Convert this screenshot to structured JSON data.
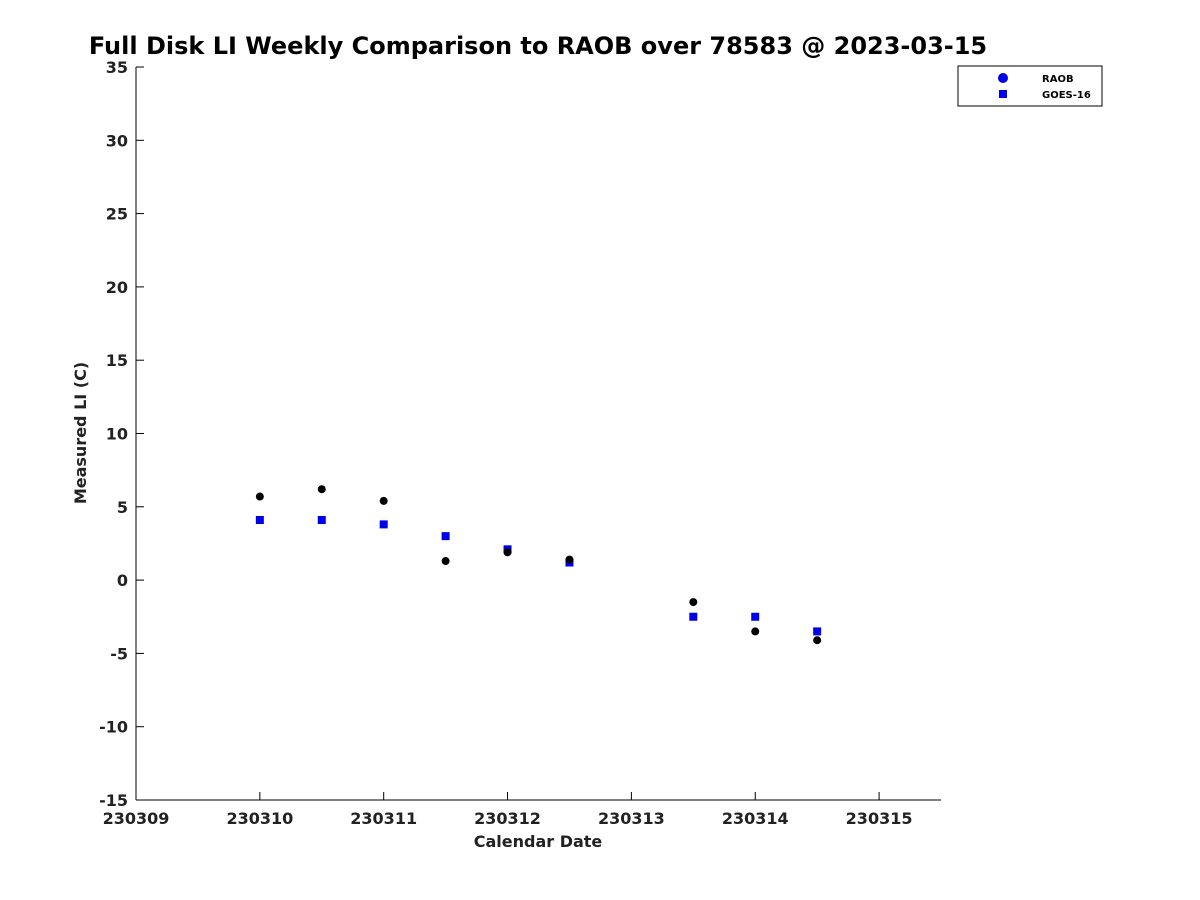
{
  "chart_data": {
    "type": "scatter",
    "title": "Full Disk LI Weekly Comparison to RAOB over 78583 @ 2023-03-15",
    "xlabel": "Calendar Date",
    "ylabel": "Measured LI (C)",
    "xlim": [
      230309,
      230315.5
    ],
    "ylim": [
      -15,
      35
    ],
    "xticks": [
      230309,
      230310,
      230311,
      230312,
      230313,
      230314,
      230315
    ],
    "xtick_labels": [
      "230309",
      "230310",
      "230311",
      "230312",
      "230313",
      "230314",
      "230315"
    ],
    "yticks": [
      35,
      30,
      25,
      20,
      15,
      10,
      5,
      0,
      -5,
      -10,
      -15
    ],
    "ytick_labels": [
      "35",
      "30",
      "25",
      "20",
      "15",
      "10",
      "5",
      "0",
      "-5",
      "-10",
      "-15"
    ],
    "grid": false,
    "legend_position": "top-right, outside plot",
    "series": [
      {
        "name": "RAOB",
        "marker": "circle",
        "color": "#000000",
        "legend_color": "#0000ee",
        "x": [
          230310,
          230310.5,
          230311,
          230311.5,
          230312,
          230312.5,
          230313.5,
          230314,
          230314.5
        ],
        "y": [
          5.7,
          6.2,
          5.4,
          1.3,
          1.9,
          1.4,
          -1.5,
          -3.5,
          -4.1
        ]
      },
      {
        "name": "GOES-16",
        "marker": "square",
        "color": "#0000ee",
        "x": [
          230310,
          230310.5,
          230311,
          230311.5,
          230312,
          230312.5,
          230313.5,
          230314,
          230314.5
        ],
        "y": [
          4.1,
          4.1,
          3.8,
          3.0,
          2.1,
          1.2,
          -2.5,
          -2.5,
          -3.5
        ]
      }
    ]
  }
}
